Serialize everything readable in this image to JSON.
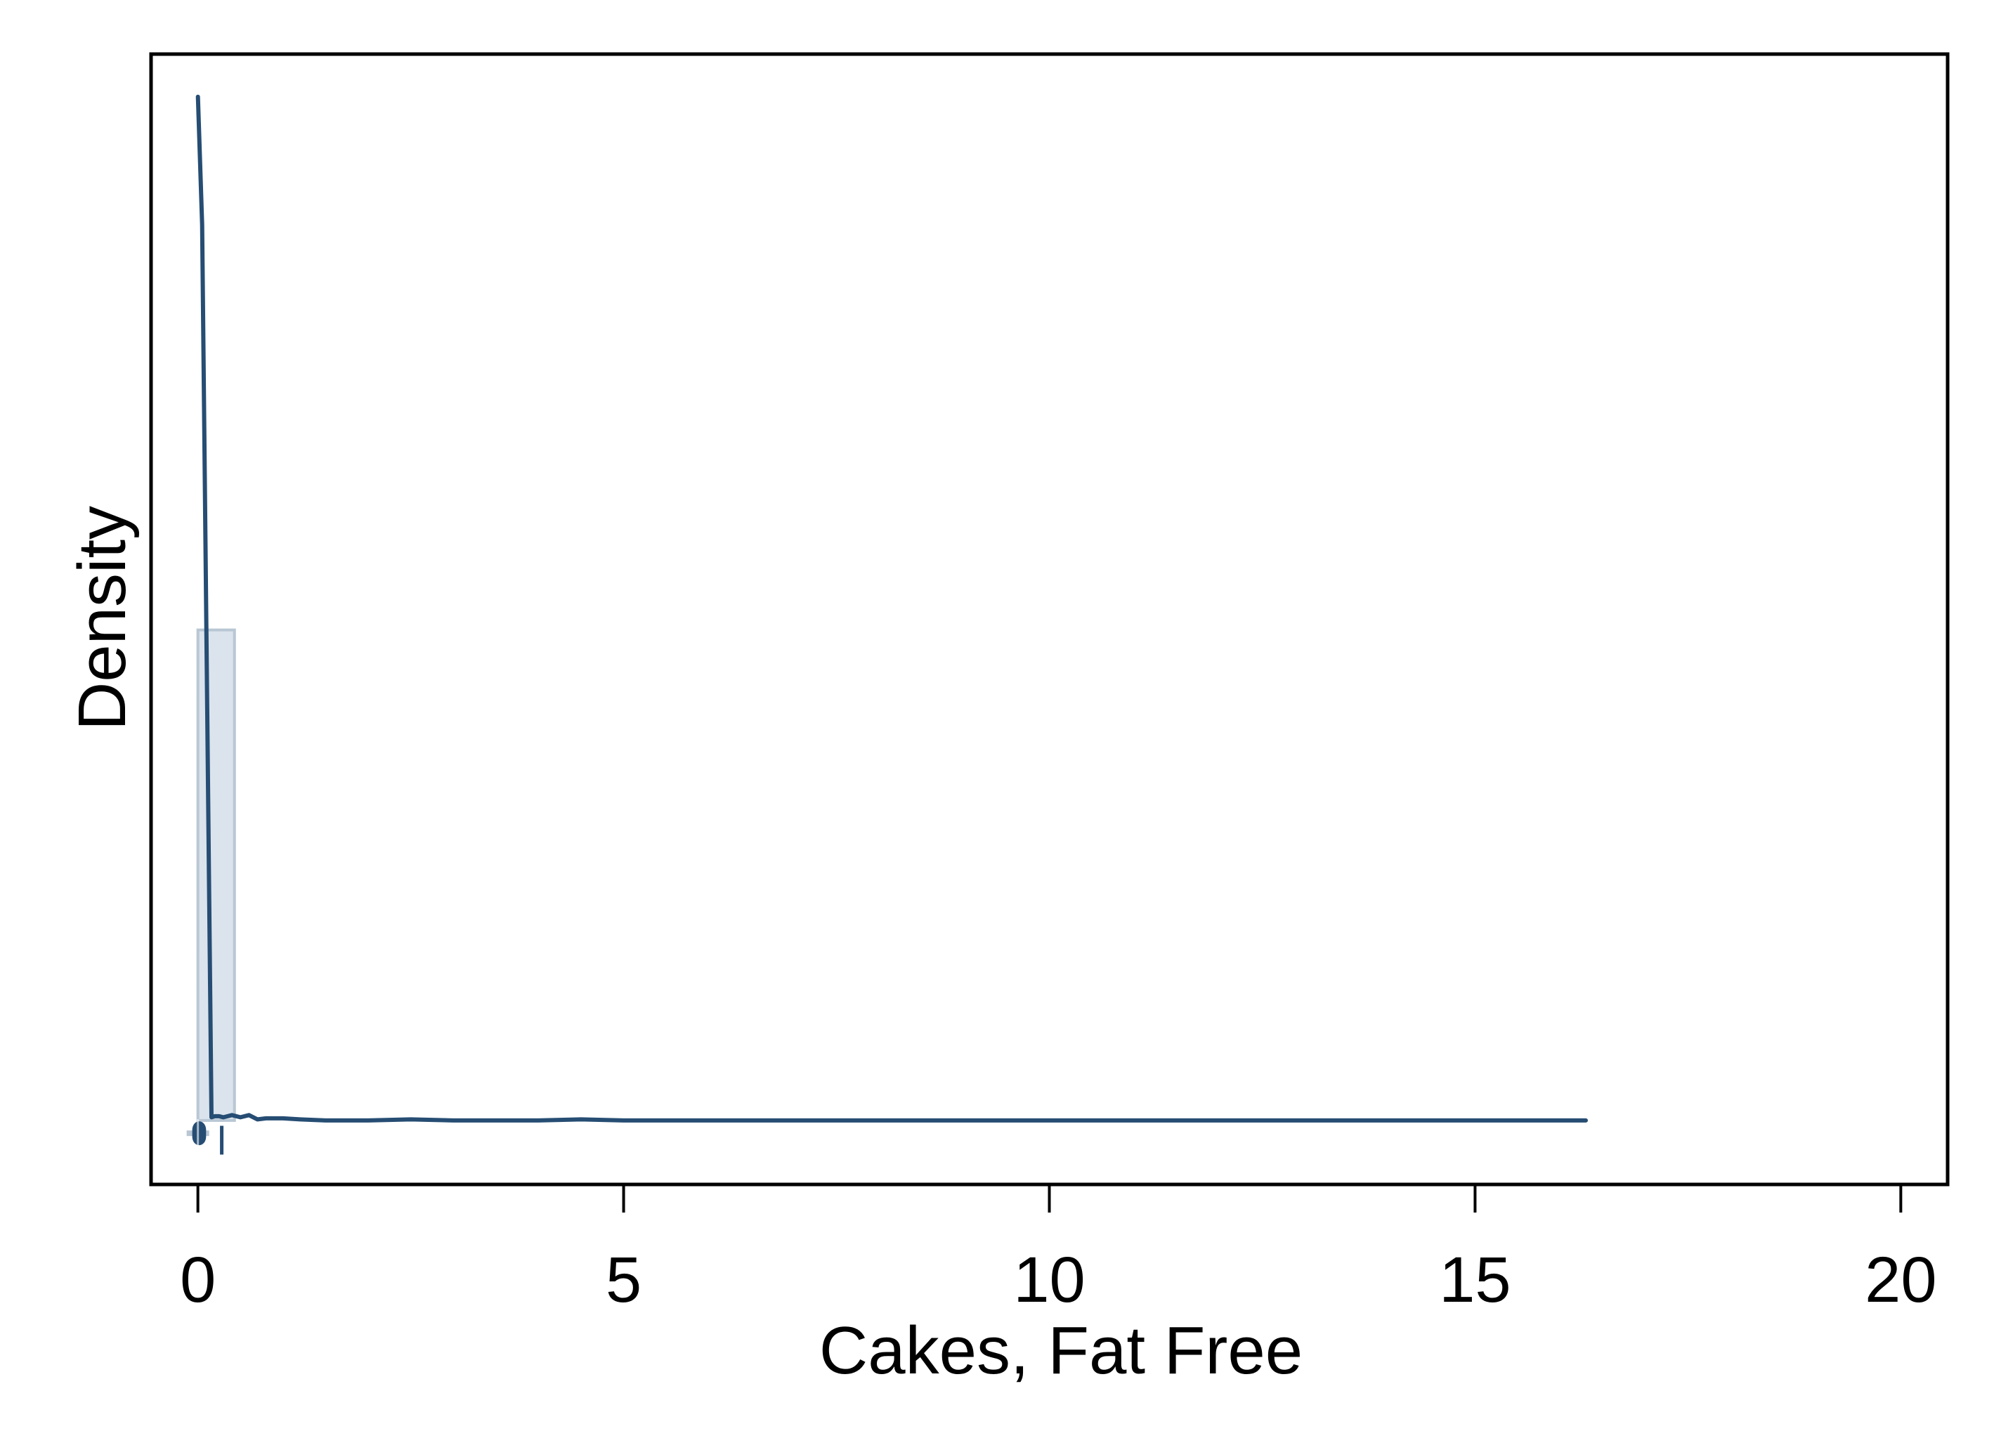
{
  "chart_data": {
    "type": "area",
    "title": "",
    "xlabel": "Cakes, Fat Free",
    "ylabel": "Density",
    "xlim": [
      -0.55,
      20.55
    ],
    "ylim": [
      -0.06,
      1.0
    ],
    "grid": false,
    "legend": "none",
    "x_ticks": [
      {
        "value": 0,
        "label": "0"
      },
      {
        "value": 5,
        "label": "5"
      },
      {
        "value": 10,
        "label": "10"
      },
      {
        "value": 15,
        "label": "15"
      },
      {
        "value": 20,
        "label": "20"
      }
    ],
    "histogram": {
      "name": "histogram",
      "bins": [
        {
          "x0": 0.0,
          "x1": 0.43,
          "density": 0.46
        }
      ]
    },
    "density_curve": {
      "name": "kernel density",
      "x": [
        0.0,
        0.05,
        0.16,
        0.2,
        0.25,
        0.3,
        0.4,
        0.5,
        0.6,
        0.7,
        0.8,
        1.0,
        1.2,
        1.5,
        2.0,
        2.5,
        3.0,
        3.5,
        4.0,
        4.5,
        5.0,
        6.0,
        8.0,
        10.0,
        12.0,
        14.0,
        16.3
      ],
      "y": [
        0.96,
        0.84,
        0.003,
        0.004,
        0.004,
        0.003,
        0.005,
        0.003,
        0.005,
        0.001,
        0.002,
        0.002,
        0.001,
        0.0,
        0.0,
        0.001,
        0.0,
        0.0,
        0.0,
        0.001,
        0.0,
        0.0,
        0.0,
        0.0,
        0.0,
        0.0,
        0.0
      ]
    },
    "rug_marker": {
      "x": 0.28
    },
    "boxplot": {
      "median": 0.0,
      "q1": 0.0,
      "q3": 0.03,
      "whisker_low": 0.0,
      "whisker_high": 0.05
    },
    "colors": {
      "line": "#264d73",
      "bar_fill": "#dbe3ec",
      "bar_stroke": "#b9c7d4",
      "axis": "#000000"
    }
  }
}
